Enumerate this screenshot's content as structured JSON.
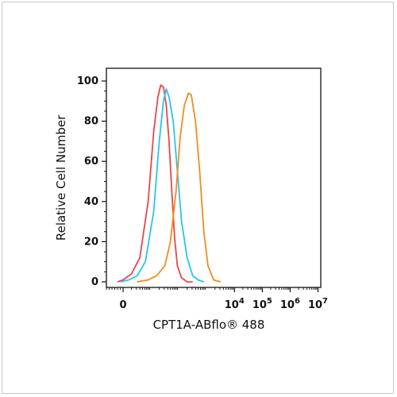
{
  "chart_data": {
    "type": "line",
    "xlabel": "CPT1A-ABflo® 488",
    "ylabel": "Relative Cell Number",
    "ylim": [
      0,
      100
    ],
    "xlim_log": [
      -0.6,
      7.1
    ],
    "grid": false,
    "y_ticks": [
      0,
      20,
      40,
      60,
      80,
      100
    ],
    "x_ticks": [
      {
        "base": "0",
        "exp": "",
        "pos": 0
      },
      {
        "base": "10",
        "exp": "4",
        "pos": 4
      },
      {
        "base": "10",
        "exp": "5",
        "pos": 5
      },
      {
        "base": "10",
        "exp": "6",
        "pos": 6
      },
      {
        "base": "10",
        "exp": "7",
        "pos": 7
      }
    ],
    "series": [
      {
        "color": "#e8464a",
        "x": [
          -0.2,
          0.0,
          0.3,
          0.6,
          0.9,
          1.1,
          1.25,
          1.35,
          1.45,
          1.55,
          1.65,
          1.75,
          1.85,
          1.95,
          2.1,
          2.3,
          2.5
        ],
        "y": [
          0,
          1,
          4,
          12,
          40,
          75,
          92,
          98,
          97,
          88,
          70,
          45,
          22,
          8,
          2,
          0,
          0
        ]
      },
      {
        "color": "#29c4f0",
        "x": [
          -0.1,
          0.2,
          0.5,
          0.8,
          1.1,
          1.3,
          1.45,
          1.55,
          1.65,
          1.8,
          1.95,
          2.1,
          2.3,
          2.5,
          2.7,
          2.9
        ],
        "y": [
          0,
          1,
          3,
          10,
          35,
          70,
          90,
          96,
          92,
          80,
          55,
          30,
          12,
          3,
          1,
          0
        ]
      },
      {
        "color": "#f28c1e",
        "x": [
          0.5,
          0.9,
          1.2,
          1.5,
          1.7,
          1.9,
          2.05,
          2.2,
          2.35,
          2.45,
          2.6,
          2.75,
          2.9,
          3.05,
          3.25,
          3.5
        ],
        "y": [
          0,
          1,
          3,
          8,
          20,
          45,
          72,
          88,
          94,
          93,
          80,
          55,
          25,
          8,
          1,
          0
        ]
      }
    ]
  }
}
